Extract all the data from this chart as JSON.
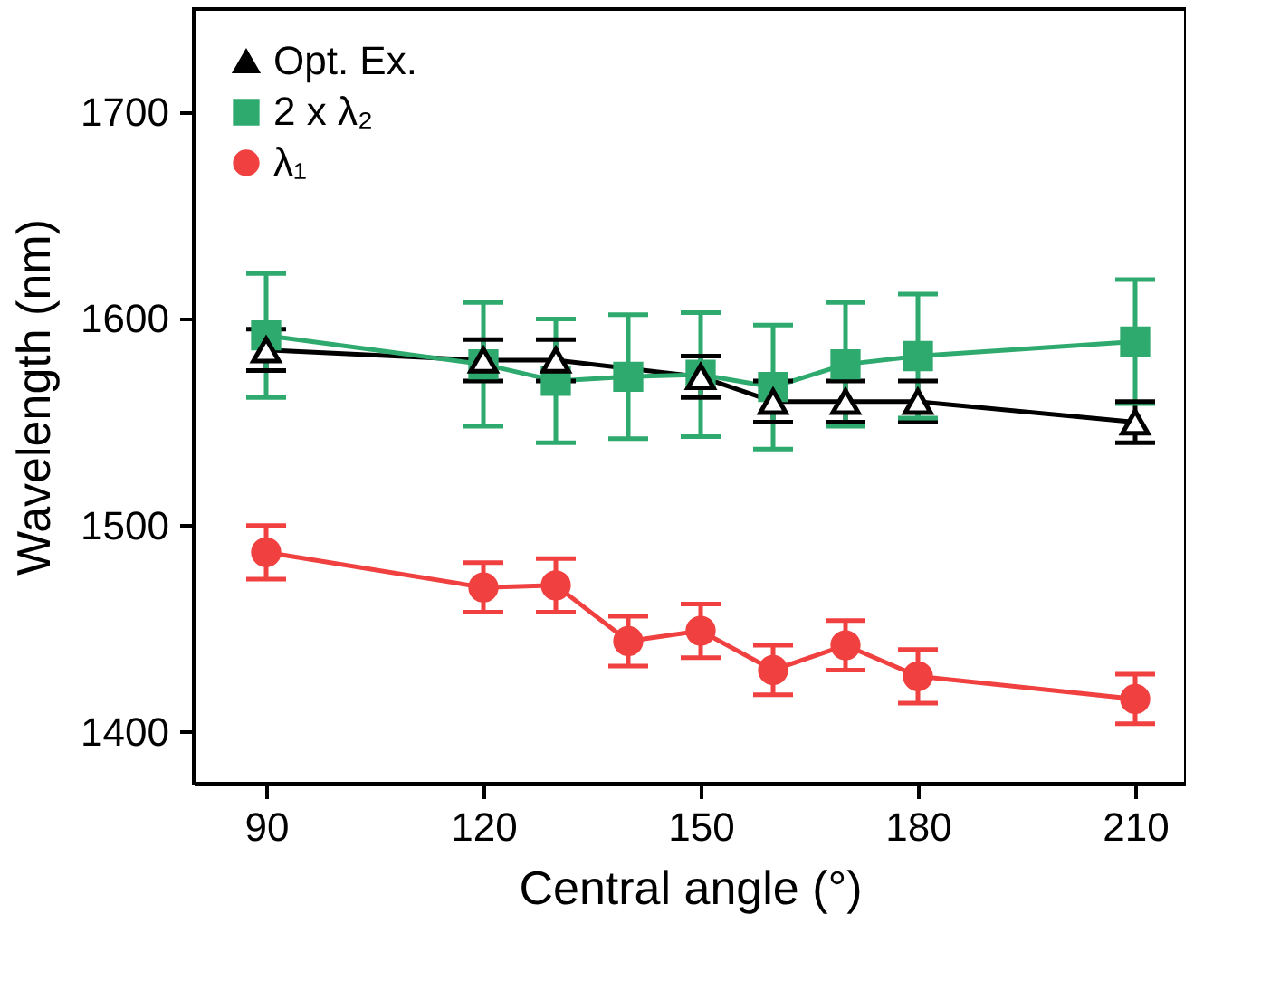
{
  "chart_data": {
    "type": "line",
    "xlabel": "Central angle (°)",
    "ylabel": "Wavelength (nm)",
    "x": [
      90,
      120,
      130,
      140,
      150,
      160,
      170,
      180,
      210
    ],
    "series": [
      {
        "name": "Opt. Ex.",
        "color": "#000000",
        "marker": "triangle",
        "x": [
          90,
          120,
          130,
          150,
          160,
          170,
          180,
          210
        ],
        "values": [
          1585,
          1580,
          1580,
          1572,
          1560,
          1560,
          1560,
          1550
        ],
        "errors": [
          10,
          10,
          10,
          10,
          10,
          10,
          10,
          10
        ]
      },
      {
        "name": "2 x λ₂",
        "color": "#2eaa6e",
        "marker": "square",
        "values": [
          1592,
          1578,
          1570,
          1572,
          1573,
          1567,
          1578,
          1582,
          1589
        ],
        "errors": [
          30,
          30,
          30,
          30,
          30,
          30,
          30,
          30,
          30
        ]
      },
      {
        "name": "λ₁",
        "color": "#f04040",
        "marker": "circle",
        "values": [
          1487,
          1470,
          1471,
          1444,
          1449,
          1430,
          1442,
          1427,
          1416
        ],
        "errors": [
          13,
          12,
          13,
          12,
          13,
          12,
          12,
          13,
          12
        ]
      }
    ],
    "xlim": [
      80,
      217
    ],
    "xticks": [
      90,
      120,
      150,
      180,
      210
    ],
    "ylim": [
      1375,
      1750
    ],
    "yticks": [
      1400,
      1500,
      1600,
      1700
    ],
    "grid": false,
    "legend": "top left",
    "line_style": "solid"
  }
}
